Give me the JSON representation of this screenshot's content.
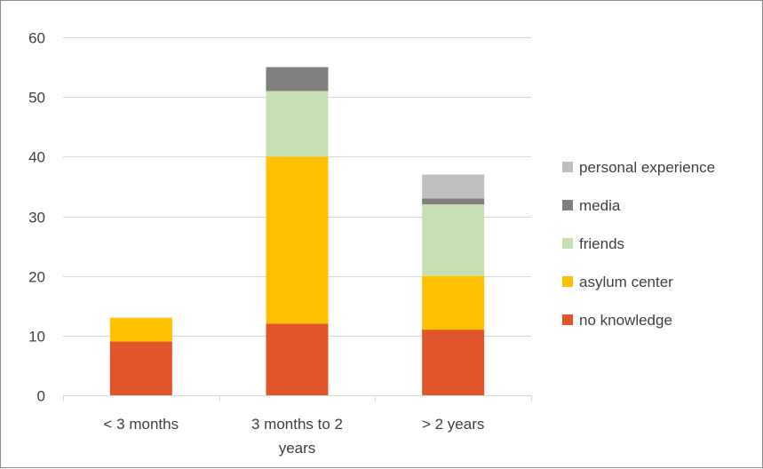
{
  "chart_data": {
    "type": "bar",
    "stacked": true,
    "title": "",
    "xlabel": "",
    "ylabel": "",
    "ylim": [
      0,
      60
    ],
    "yticks": [
      0,
      10,
      20,
      30,
      40,
      50,
      60
    ],
    "grid": true,
    "legend_position": "right",
    "categories": [
      [
        "< 3 months"
      ],
      [
        "3 months to 2",
        "years"
      ],
      [
        "> 2 years"
      ]
    ],
    "series": [
      {
        "name": "no knowledge",
        "color": "#e05529",
        "values": [
          9,
          12,
          11
        ]
      },
      {
        "name": "asylum center",
        "color": "#ffc000",
        "values": [
          4,
          28,
          9
        ]
      },
      {
        "name": "friends",
        "color": "#c6e0b4",
        "values": [
          0,
          11,
          12
        ]
      },
      {
        "name": "media",
        "color": "#7f7f7f",
        "values": [
          0,
          4,
          1
        ]
      },
      {
        "name": "personal experience",
        "color": "#bfbfbf",
        "values": [
          0,
          0,
          4
        ]
      }
    ]
  }
}
